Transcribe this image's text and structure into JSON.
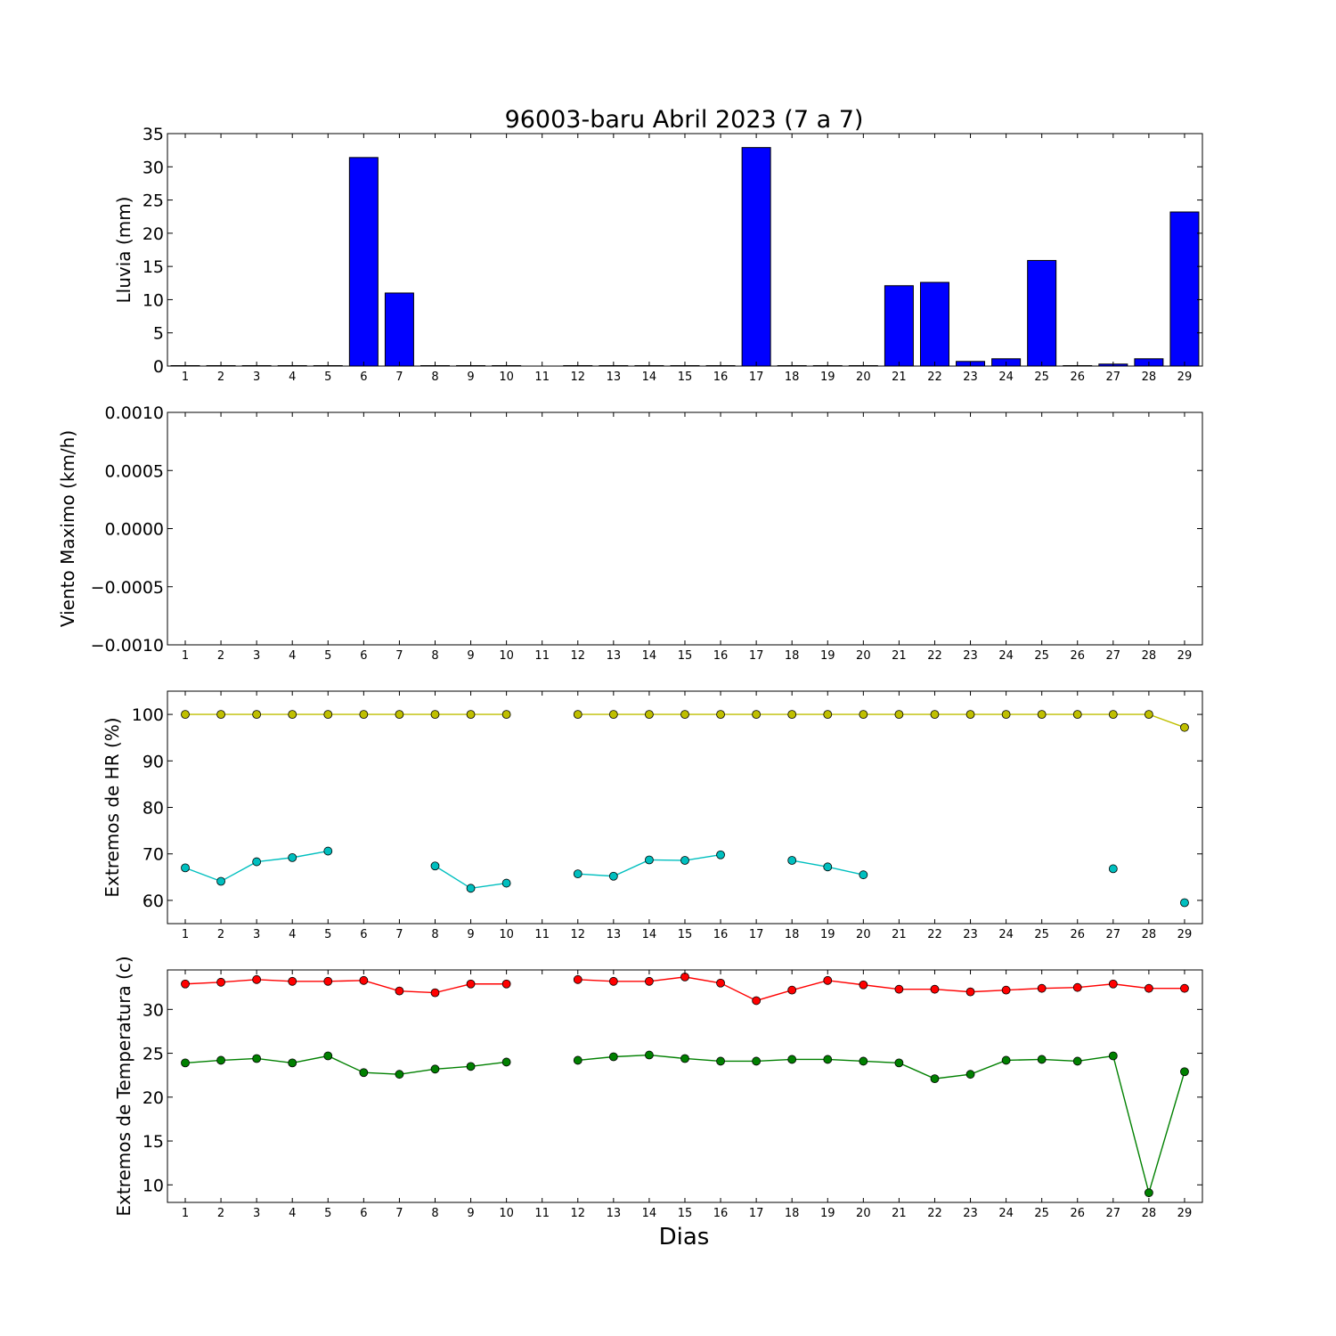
{
  "chart_data": [
    {
      "type": "bar",
      "title": "96003-baru Abril 2023  (7 a 7)",
      "ylabel": "Lluvia (mm)",
      "xlabel": "",
      "categories": [
        "1",
        "2",
        "3",
        "4",
        "5",
        "6",
        "7",
        "8",
        "9",
        "10",
        "11",
        "12",
        "13",
        "14",
        "15",
        "16",
        "17",
        "18",
        "19",
        "20",
        "21",
        "22",
        "23",
        "24",
        "25",
        "26",
        "27",
        "28",
        "29"
      ],
      "ylim": [
        0,
        35
      ],
      "yticks": [
        "0",
        "5",
        "10",
        "15",
        "20",
        "25",
        "30",
        "35"
      ],
      "color": "#0000ff",
      "series": [
        {
          "values": [
            0,
            0,
            0,
            0,
            0,
            31.4,
            11.0,
            0,
            0,
            0,
            null,
            0,
            0,
            0,
            0,
            0,
            32.9,
            0,
            0,
            0,
            12.1,
            12.6,
            0.7,
            1.1,
            15.9,
            0,
            0.3,
            1.1,
            23.2
          ]
        }
      ]
    },
    {
      "type": "line",
      "ylabel": "Viento Maximo (km/h)",
      "xlabel": "",
      "categories": [
        "1",
        "2",
        "3",
        "4",
        "5",
        "6",
        "7",
        "8",
        "9",
        "10",
        "11",
        "12",
        "13",
        "14",
        "15",
        "16",
        "17",
        "18",
        "19",
        "20",
        "21",
        "22",
        "23",
        "24",
        "25",
        "26",
        "27",
        "28",
        "29"
      ],
      "ylim": [
        -0.001,
        0.001
      ],
      "yticks": [
        "0.0010",
        "0.0005",
        "0.0000",
        "−0.0005",
        "−0.0010"
      ],
      "series": []
    },
    {
      "type": "line",
      "ylabel": "Extremos de HR (%)",
      "xlabel": "",
      "categories": [
        "1",
        "2",
        "3",
        "4",
        "5",
        "6",
        "7",
        "8",
        "9",
        "10",
        "11",
        "12",
        "13",
        "14",
        "15",
        "16",
        "17",
        "18",
        "19",
        "20",
        "21",
        "22",
        "23",
        "24",
        "25",
        "26",
        "27",
        "28",
        "29"
      ],
      "ylim": [
        55,
        105
      ],
      "yticks": [
        "60",
        "70",
        "80",
        "90",
        "100"
      ],
      "series": [
        {
          "color": "#bfbf00",
          "values": [
            100,
            100,
            100,
            100,
            100,
            100,
            100,
            100,
            100,
            100,
            null,
            100,
            100,
            100,
            100,
            100,
            100,
            100,
            100,
            100,
            100,
            100,
            100,
            100,
            100,
            100,
            100,
            100,
            97.2
          ]
        },
        {
          "color": "#00bfbf",
          "values": [
            67,
            64.1,
            68.3,
            69.2,
            70.6,
            null,
            null,
            67.4,
            62.6,
            63.7,
            null,
            65.7,
            65.2,
            68.7,
            68.6,
            69.8,
            null,
            68.6,
            67.2,
            65.5,
            null,
            null,
            null,
            null,
            null,
            null,
            66.8,
            null,
            59.5
          ]
        }
      ]
    },
    {
      "type": "line",
      "ylabel": "Extremos de Temperatura (c)",
      "xlabel": "Dias",
      "categories": [
        "1",
        "2",
        "3",
        "4",
        "5",
        "6",
        "7",
        "8",
        "9",
        "10",
        "11",
        "12",
        "13",
        "14",
        "15",
        "16",
        "17",
        "18",
        "19",
        "20",
        "21",
        "22",
        "23",
        "24",
        "25",
        "26",
        "27",
        "28",
        "29"
      ],
      "ylim": [
        8,
        34.5
      ],
      "yticks": [
        "10",
        "15",
        "20",
        "25",
        "30"
      ],
      "series": [
        {
          "color": "#ff0000",
          "values": [
            32.9,
            33.1,
            33.4,
            33.2,
            33.2,
            33.3,
            32.1,
            31.9,
            32.9,
            32.9,
            null,
            33.4,
            33.2,
            33.2,
            33.7,
            33.0,
            31.0,
            32.2,
            33.3,
            32.8,
            32.3,
            32.3,
            32.0,
            32.2,
            32.4,
            32.5,
            32.9,
            32.4,
            32.4
          ]
        },
        {
          "color": "#008000",
          "values": [
            23.9,
            24.2,
            24.4,
            23.9,
            24.7,
            22.8,
            22.6,
            23.2,
            23.5,
            24.0,
            null,
            24.2,
            24.6,
            24.8,
            24.4,
            24.1,
            24.1,
            24.3,
            24.3,
            24.1,
            23.9,
            22.1,
            22.6,
            24.2,
            24.3,
            24.1,
            24.7,
            9.1,
            22.9
          ]
        }
      ]
    }
  ]
}
